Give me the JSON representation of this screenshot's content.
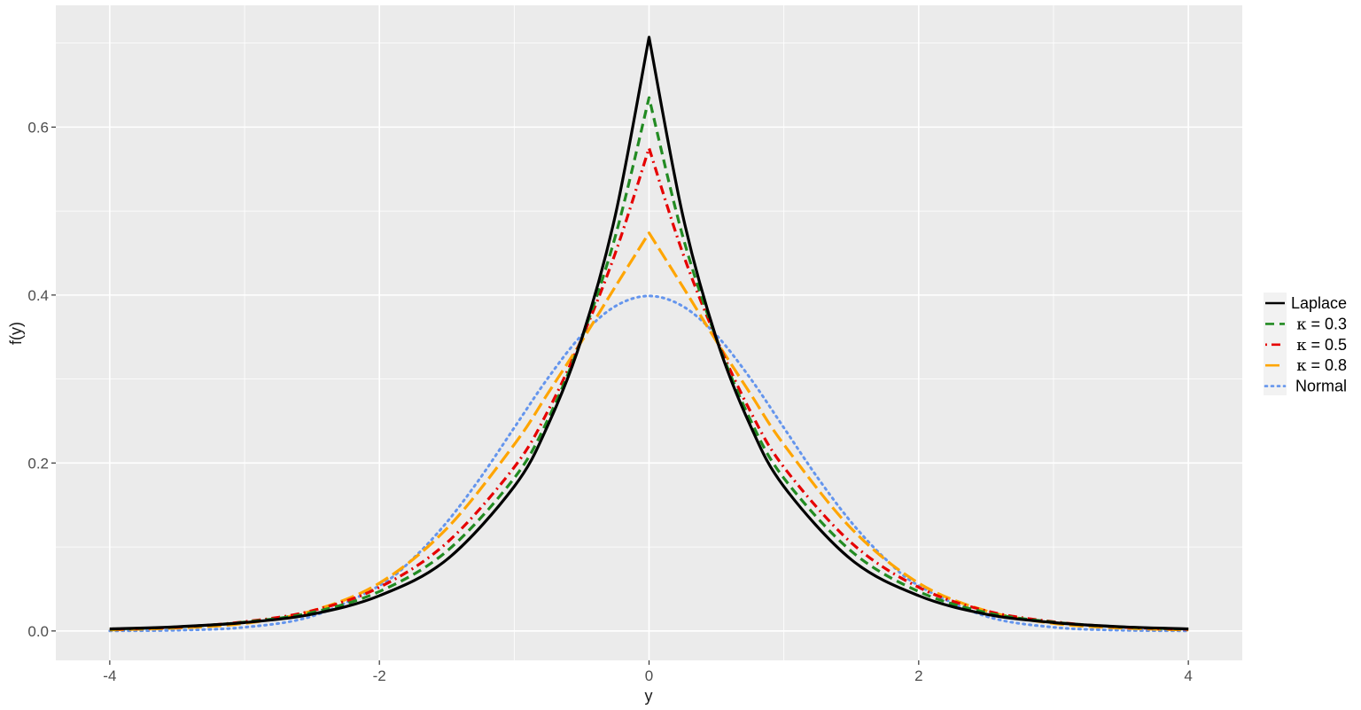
{
  "chart_data": {
    "type": "line",
    "title": "",
    "xlabel": "y",
    "ylabel": "f(y)",
    "xlim": [
      -4.4,
      4.4
    ],
    "ylim": [
      -0.035,
      0.745
    ],
    "x_ticks": [
      -4,
      -2,
      0,
      2,
      4
    ],
    "x_tick_labels": [
      "-4",
      "-2",
      "0",
      "2",
      "4"
    ],
    "x_minor_ticks": [
      -3,
      -1,
      1,
      3
    ],
    "y_ticks": [
      0.0,
      0.2,
      0.4,
      0.6
    ],
    "y_tick_labels": [
      "0.0",
      "0.2",
      "0.4",
      "0.6"
    ],
    "y_minor_ticks": [
      0.1,
      0.3,
      0.5,
      0.7
    ],
    "grid": true,
    "panel_background": "#ebebeb",
    "grid_color": "#ffffff",
    "legend_position": "right",
    "series": [
      {
        "name": "Laplace",
        "color": "#000000",
        "dash": "solid",
        "x": [
          -4,
          -3.5,
          -3,
          -2.5,
          -2,
          -1.5,
          -1,
          -0.75,
          -0.5,
          -0.25,
          0,
          0.25,
          0.5,
          0.75,
          1,
          1.5,
          2,
          2.5,
          3,
          3.5,
          4
        ],
        "y": [
          0.0025,
          0.005,
          0.01,
          0.02,
          0.042,
          0.085,
          0.172,
          0.245,
          0.348,
          0.495,
          0.707,
          0.495,
          0.348,
          0.245,
          0.172,
          0.085,
          0.042,
          0.02,
          0.01,
          0.005,
          0.0025
        ]
      },
      {
        "name": "κ = 0.3",
        "legend_prefix": "κ",
        "legend_value": "= 0.3",
        "color": "#228B22",
        "dash": "dashed",
        "x": [
          -4,
          -3.5,
          -3,
          -2.5,
          -2,
          -1.5,
          -1,
          -0.75,
          -0.5,
          -0.25,
          0,
          0.25,
          0.5,
          0.75,
          1,
          1.5,
          2,
          2.5,
          3,
          3.5,
          4
        ],
        "y": [
          0.0022,
          0.0048,
          0.0105,
          0.022,
          0.047,
          0.095,
          0.182,
          0.252,
          0.348,
          0.47,
          0.635,
          0.47,
          0.348,
          0.252,
          0.182,
          0.095,
          0.047,
          0.022,
          0.0105,
          0.0048,
          0.0022
        ]
      },
      {
        "name": "κ = 0.5",
        "legend_prefix": "κ",
        "legend_value": "= 0.5",
        "color": "#E60000",
        "dash": "dotdash",
        "x": [
          -4,
          -3.5,
          -3,
          -2.5,
          -2,
          -1.5,
          -1,
          -0.75,
          -0.5,
          -0.25,
          0,
          0.25,
          0.5,
          0.75,
          1,
          1.5,
          2,
          2.5,
          3,
          3.5,
          4
        ],
        "y": [
          0.002,
          0.0046,
          0.011,
          0.024,
          0.052,
          0.105,
          0.195,
          0.262,
          0.348,
          0.45,
          0.575,
          0.45,
          0.348,
          0.262,
          0.195,
          0.105,
          0.052,
          0.024,
          0.011,
          0.0046,
          0.002
        ]
      },
      {
        "name": "κ = 0.8",
        "legend_prefix": "κ",
        "legend_value": "= 0.8",
        "color": "#FFA500",
        "dash": "longdash",
        "x": [
          -4,
          -3.5,
          -3,
          -2.5,
          -2,
          -1.5,
          -1,
          -0.75,
          -0.5,
          -0.25,
          0,
          0.25,
          0.5,
          0.75,
          1,
          1.5,
          2,
          2.5,
          3,
          3.5,
          4
        ],
        "y": [
          0.0012,
          0.0035,
          0.009,
          0.024,
          0.057,
          0.122,
          0.222,
          0.283,
          0.345,
          0.41,
          0.474,
          0.41,
          0.345,
          0.283,
          0.222,
          0.122,
          0.057,
          0.024,
          0.009,
          0.0035,
          0.0012
        ]
      },
      {
        "name": "Normal",
        "color": "#6495ED",
        "dash": "dotted",
        "x": [
          -4,
          -3.5,
          -3,
          -2.5,
          -2,
          -1.75,
          -1.5,
          -1.25,
          -1,
          -0.75,
          -0.5,
          -0.25,
          0,
          0.25,
          0.5,
          0.75,
          1,
          1.25,
          1.5,
          1.75,
          2,
          2.5,
          3,
          3.5,
          4
        ],
        "y": [
          0.0001,
          0.0009,
          0.0044,
          0.0175,
          0.054,
          0.0863,
          0.1295,
          0.1826,
          0.242,
          0.3011,
          0.3521,
          0.3867,
          0.3989,
          0.3867,
          0.3521,
          0.3011,
          0.242,
          0.1826,
          0.1295,
          0.0863,
          0.054,
          0.0175,
          0.0044,
          0.0009,
          0.0001
        ]
      }
    ]
  }
}
